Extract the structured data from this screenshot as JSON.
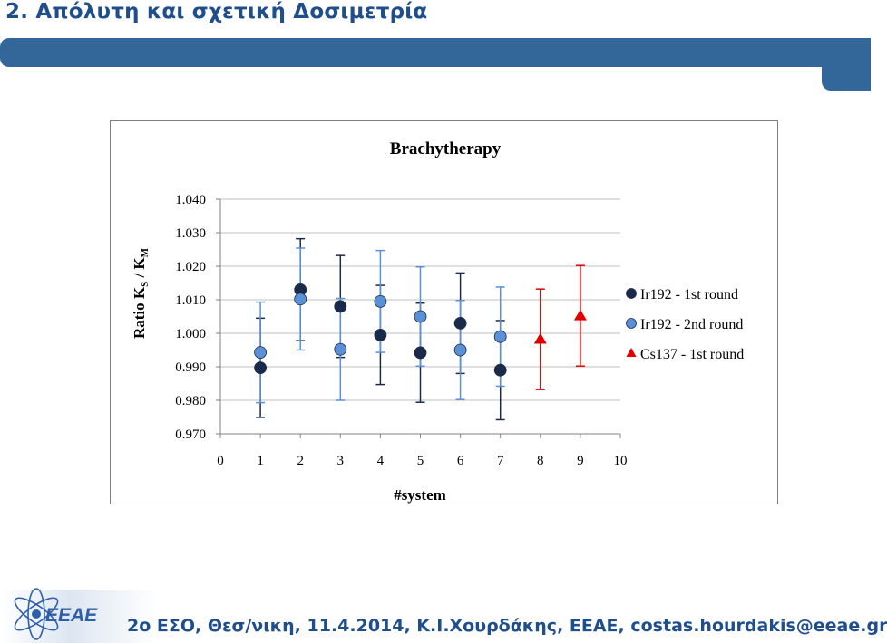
{
  "slide": {
    "title": "2. Απόλυτη και σχετική Δοσιμετρία",
    "footer": "2o ΕΣΟ, Θεσ/νικη,  11.4.2014,  Κ.Ι.Χουρδάκης, ΕΕΑΕ,  costas.hourdakis@eeae.gr",
    "logo_text": "EEAE"
  },
  "colors": {
    "accent_bar": "#336699",
    "title_text": "#1f4e8c",
    "series_dark": "#1b2a4a",
    "series_light": "#5b8fd6",
    "series_red": "#e00000"
  },
  "chart_data": {
    "type": "scatter",
    "title": "Brachytherapy",
    "xlabel": "#system",
    "ylabel": "Ratio K_S / K_M",
    "ylabel_parts": {
      "main": "Ratio K",
      "sub1": "S",
      "sep": " / K",
      "sub2": "M"
    },
    "xlim": [
      0,
      10
    ],
    "ylim": [
      0.97,
      1.04
    ],
    "xticks": [
      "0",
      "1",
      "2",
      "3",
      "4",
      "5",
      "6",
      "7",
      "8",
      "9",
      "10"
    ],
    "yticks": [
      "0.970",
      "0.980",
      "0.990",
      "1.000",
      "1.010",
      "1.020",
      "1.030",
      "1.040"
    ],
    "grid": true,
    "legend_position": "right",
    "series": [
      {
        "name": "Ir192 - 1st round",
        "marker": "circle",
        "color": "#1b2a4a",
        "x": [
          1,
          2,
          3,
          4,
          5,
          6,
          7
        ],
        "y": [
          0.9897,
          1.013,
          1.008,
          0.9995,
          0.9942,
          1.003,
          0.989
        ],
        "err": [
          0.0148,
          0.0152,
          0.0152,
          0.0148,
          0.0148,
          0.015,
          0.0148
        ]
      },
      {
        "name": "Ir192 - 2nd round",
        "marker": "circle",
        "color": "#5b8fd6",
        "x": [
          1,
          2,
          3,
          4,
          5,
          6,
          7
        ],
        "y": [
          0.9943,
          1.0102,
          0.9952,
          1.0095,
          1.005,
          0.995,
          0.999
        ],
        "err": [
          0.015,
          0.0152,
          0.0152,
          0.0152,
          0.0148,
          0.0148,
          0.0148
        ]
      },
      {
        "name": "Cs137 - 1st round",
        "marker": "triangle",
        "color": "#e00000",
        "x": [
          8,
          9
        ],
        "y": [
          0.9982,
          1.0052
        ],
        "err": [
          0.015,
          0.015
        ]
      }
    ]
  }
}
